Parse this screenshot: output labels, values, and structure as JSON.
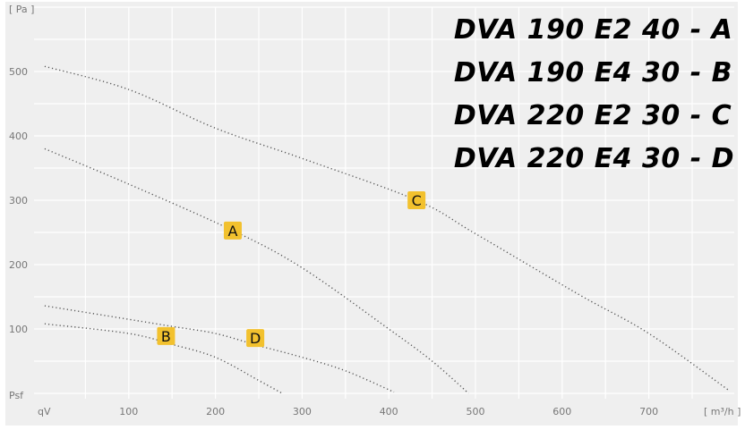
{
  "chart_data": {
    "type": "line",
    "title": "",
    "xlabel": "qV",
    "xunit": "[ m³/h ]",
    "ylabel": "Psf",
    "yunit": "[ Pa ]",
    "xlim": [
      0,
      800
    ],
    "ylim": [
      0,
      600
    ],
    "xticks": [
      100,
      200,
      300,
      400,
      500,
      600,
      700
    ],
    "yticks": [
      100,
      200,
      300,
      400,
      500
    ],
    "grid": true,
    "line_style": "dotted",
    "line_color": "#555555",
    "label_color": "#f2c12e",
    "background": "#efefef",
    "series": [
      {
        "name": "A",
        "label_at": [
          220,
          253
        ],
        "points": [
          [
            3,
            380
          ],
          [
            100,
            325
          ],
          [
            220,
            253
          ],
          [
            300,
            195
          ],
          [
            400,
            100
          ],
          [
            450,
            50
          ],
          [
            492,
            0
          ]
        ]
      },
      {
        "name": "B",
        "label_at": [
          143,
          89
        ],
        "points": [
          [
            3,
            108
          ],
          [
            100,
            93
          ],
          [
            150,
            76
          ],
          [
            200,
            56
          ],
          [
            250,
            20
          ],
          [
            277,
            0
          ]
        ]
      },
      {
        "name": "C",
        "label_at": [
          432,
          300
        ],
        "points": [
          [
            3,
            508
          ],
          [
            100,
            472
          ],
          [
            200,
            412
          ],
          [
            300,
            365
          ],
          [
            432,
            300
          ],
          [
            500,
            248
          ],
          [
            620,
            153
          ],
          [
            700,
            93
          ],
          [
            793,
            4
          ]
        ]
      },
      {
        "name": "D",
        "label_at": [
          246,
          86
        ],
        "points": [
          [
            3,
            136
          ],
          [
            100,
            115
          ],
          [
            150,
            104
          ],
          [
            200,
            93
          ],
          [
            250,
            74
          ],
          [
            300,
            56
          ],
          [
            350,
            35
          ],
          [
            406,
            2
          ]
        ]
      }
    ],
    "legend": [
      "DVA 190 E2 40 - A",
      "DVA 190 E4 30 - B",
      "DVA 220 E2 30 - C",
      "DVA 220 E4 30 - D"
    ]
  }
}
